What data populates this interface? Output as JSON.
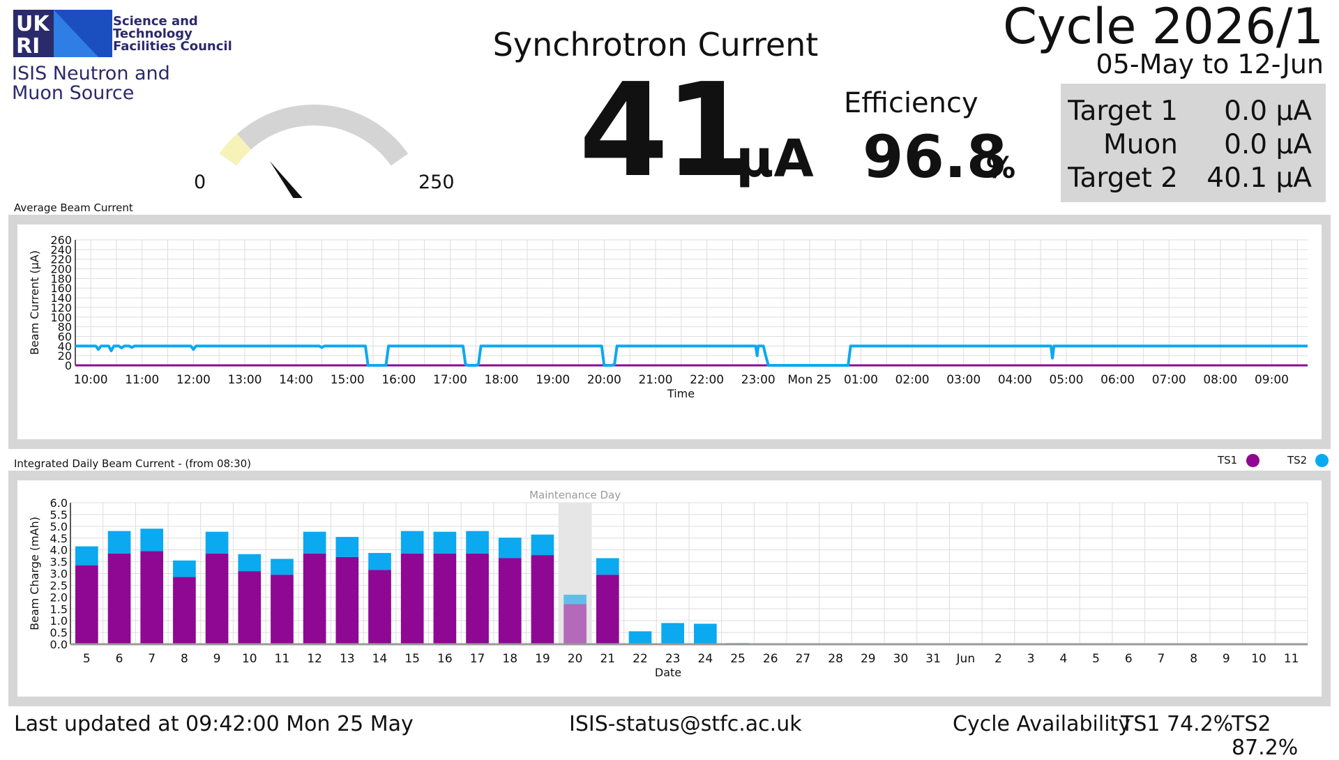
{
  "header": {
    "logo_letters": [
      "UK",
      "RI"
    ],
    "org_lines": [
      "Science and",
      "Technology",
      "Facilities Council"
    ],
    "source_lines": [
      "ISIS Neutron and",
      "Muon Source"
    ],
    "title": "Synchrotron Current",
    "current_value": "41",
    "current_unit": "μA",
    "efficiency_label": "Efficiency",
    "efficiency_value": "96.8",
    "efficiency_unit": "%",
    "cycle": "Cycle 2026/1",
    "cycle_dates": "05-May to 12-Jun"
  },
  "targets": [
    {
      "name": "Target 1",
      "value": "0.0 μA"
    },
    {
      "name": "Muon",
      "value": "0.0 μA"
    },
    {
      "name": "Target 2",
      "value": "40.1 μA"
    }
  ],
  "gauge": {
    "min_label": "0",
    "max_label": "250",
    "min": 0,
    "max": 250,
    "value": 41,
    "warn_upto": 30,
    "colors": {
      "track": "#d4d4d4",
      "warn": "#f6f2b8",
      "needle": "#111111"
    }
  },
  "panels": {
    "avg_title": "Average Beam Current",
    "daily_title": "Integrated Daily Beam Current - (from 08:30)",
    "legend": [
      {
        "name": "TS1",
        "color": "#8e0894"
      },
      {
        "name": "TS2",
        "color": "#0ba9f0"
      }
    ]
  },
  "footer": {
    "last_updated": "Last updated at 09:42:00 Mon 25 May",
    "email": "ISIS-status@stfc.ac.uk",
    "availability_label": "Cycle Availability",
    "ts1": "TS1 74.2%",
    "ts2": "TS2 87.2%"
  },
  "chart_data": [
    {
      "type": "line",
      "title": "Average Beam Current",
      "xlabel": "Time",
      "ylabel": "Beam Current (μA)",
      "ylim": [
        0,
        260
      ],
      "yticks": [
        0,
        20,
        40,
        60,
        80,
        100,
        120,
        140,
        160,
        180,
        200,
        220,
        240,
        260
      ],
      "xticks": [
        "10:00",
        "11:00",
        "12:00",
        "13:00",
        "14:00",
        "15:00",
        "16:00",
        "17:00",
        "18:00",
        "19:00",
        "20:00",
        "21:00",
        "22:00",
        "23:00",
        "Mon 25",
        "01:00",
        "02:00",
        "03:00",
        "04:00",
        "05:00",
        "06:00",
        "07:00",
        "08:00",
        "09:00"
      ],
      "x_hours_start": 9.7,
      "x_hours_end": 33.7,
      "grid": true,
      "series": [
        {
          "name": "TS2",
          "color": "#0ba9f0",
          "x": [
            9.7,
            10.1,
            10.15,
            10.2,
            10.35,
            10.4,
            10.45,
            10.55,
            10.6,
            10.65,
            10.75,
            10.8,
            10.85,
            11.0,
            11.95,
            12.0,
            12.05,
            14.0,
            14.45,
            14.5,
            14.55,
            15.35,
            15.4,
            15.45,
            15.75,
            15.8,
            15.85,
            17.25,
            17.3,
            17.35,
            17.5,
            17.55,
            17.6,
            19.95,
            20.0,
            20.05,
            20.15,
            20.2,
            20.25,
            22.95,
            22.98,
            23.0,
            23.1,
            23.15,
            23.2,
            24.7,
            24.75,
            24.8,
            28.7,
            28.73,
            28.76,
            33.7
          ],
          "y": [
            40,
            40,
            33,
            40,
            40,
            30,
            40,
            40,
            36,
            40,
            40,
            37,
            40,
            40,
            40,
            33,
            40,
            40,
            40,
            37,
            40,
            40,
            0,
            0,
            0,
            40,
            40,
            40,
            2,
            0,
            0,
            2,
            40,
            40,
            0,
            0,
            0,
            2,
            40,
            40,
            20,
            40,
            40,
            18,
            0,
            0,
            0,
            40,
            40,
            15,
            40,
            40
          ]
        },
        {
          "name": "TS1",
          "color": "#8e0894",
          "x": [
            9.7,
            33.7
          ],
          "y": [
            0,
            0
          ]
        }
      ]
    },
    {
      "type": "bar",
      "stacked": true,
      "title": "Integrated Daily Beam Current - (from 08:30)",
      "xlabel": "Date",
      "ylabel": "Beam Charge (mAh)",
      "ylim": [
        0,
        6.0
      ],
      "yticks": [
        "0.0",
        "0.5",
        "1.0",
        "1.5",
        "2.0",
        "2.5",
        "3.0",
        "3.5",
        "4.0",
        "4.5",
        "5.0",
        "5.5",
        "6.0"
      ],
      "categories": [
        "5",
        "6",
        "7",
        "8",
        "9",
        "10",
        "11",
        "12",
        "13",
        "14",
        "15",
        "16",
        "17",
        "18",
        "19",
        "20",
        "21",
        "22",
        "23",
        "24",
        "25",
        "26",
        "27",
        "28",
        "29",
        "30",
        "31",
        "Jun",
        "2",
        "3",
        "4",
        "5",
        "6",
        "7",
        "8",
        "9",
        "10",
        "11"
      ],
      "annotation": {
        "category": "20",
        "text": "Maintenance Day"
      },
      "series": [
        {
          "name": "TS1",
          "color": "#8e0894",
          "values": [
            3.35,
            3.85,
            3.95,
            2.85,
            3.85,
            3.1,
            2.95,
            3.85,
            3.7,
            3.15,
            3.85,
            3.85,
            3.85,
            3.65,
            3.78,
            1.7,
            2.95,
            0,
            0,
            0,
            0,
            0,
            0,
            0,
            0,
            0,
            0,
            0,
            0,
            0,
            0,
            0,
            0,
            0,
            0,
            0,
            0,
            0
          ]
        },
        {
          "name": "TS2",
          "color": "#0ba9f0",
          "values": [
            0.8,
            0.95,
            0.95,
            0.7,
            0.92,
            0.72,
            0.67,
            0.92,
            0.85,
            0.72,
            0.95,
            0.92,
            0.95,
            0.87,
            0.87,
            0.4,
            0.7,
            0.55,
            0.9,
            0.87,
            0.05,
            0,
            0,
            0,
            0,
            0,
            0,
            0,
            0,
            0,
            0,
            0,
            0,
            0,
            0,
            0,
            0,
            0
          ]
        }
      ]
    }
  ]
}
